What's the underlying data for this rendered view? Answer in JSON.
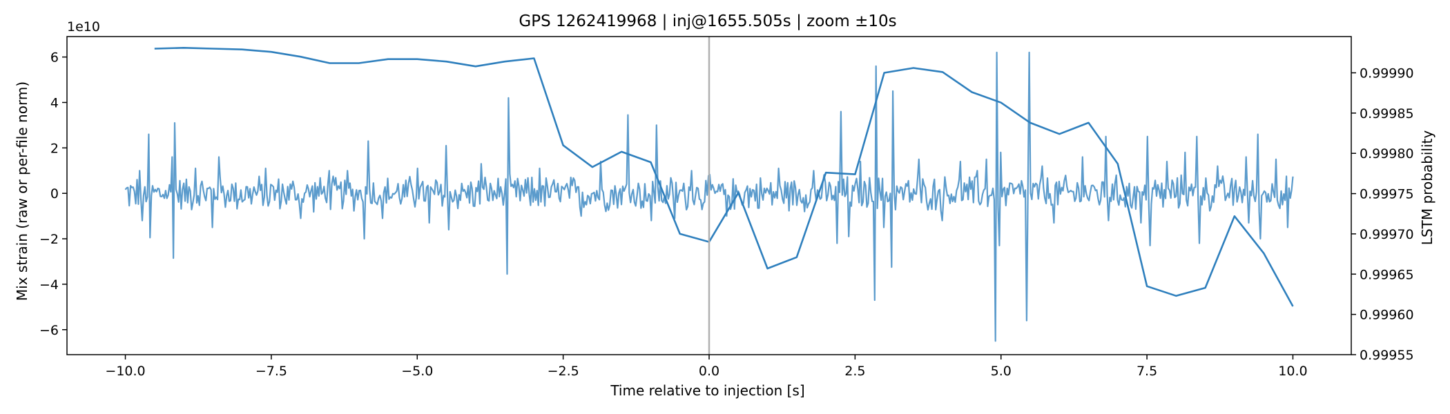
{
  "chart_data": {
    "type": "line",
    "title": "GPS 1262419968 | inj@1655.505s | zoom ±10s",
    "xlabel": "Time relative to injection [s]",
    "ylabel_left": "Mix strain (raw or per-file norm)",
    "ylabel_right": "LSTM probability",
    "left_scale_label": "1e10",
    "xlim": [
      -11,
      11
    ],
    "ylim_left": [
      -7.1,
      6.9
    ],
    "ylim_right": [
      0.99955,
      0.999945
    ],
    "x_ticks": [
      -10,
      -7.5,
      -5,
      -2.5,
      0,
      2.5,
      5,
      7.5,
      10
    ],
    "x_tick_labels": [
      "−10.0",
      "−7.5",
      "−5.0",
      "−2.5",
      "0.0",
      "2.5",
      "5.0",
      "7.5",
      "10.0"
    ],
    "y_left_ticks": [
      -6,
      -4,
      -2,
      0,
      2,
      4,
      6
    ],
    "y_left_tick_labels": [
      "−6",
      "−4",
      "−2",
      "0",
      "2",
      "4",
      "6"
    ],
    "y_right_ticks": [
      0.99955,
      0.9996,
      0.99965,
      0.9997,
      0.99975,
      0.9998,
      0.99985,
      0.9999
    ],
    "y_right_tick_labels": [
      "0.99955",
      "0.99960",
      "0.99965",
      "0.99970",
      "0.99975",
      "0.99980",
      "0.99985",
      "0.99990"
    ],
    "injection_marker_x": 0,
    "colors": {
      "strain": "#5b9bcc",
      "prob": "#2e7fbd",
      "vline": "#b0b0b0"
    },
    "strain_series": {
      "name": "Mix strain",
      "x_start": -10,
      "x_end": 10,
      "n": 900,
      "typical_amplitude": 0.9,
      "spikes": [
        {
          "x": -9.75,
          "y": 1.0
        },
        {
          "x": -9.7,
          "y": -1.2
        },
        {
          "x": -9.6,
          "y": 2.6
        },
        {
          "x": -9.58,
          "y": -1.95
        },
        {
          "x": -9.2,
          "y": 1.6
        },
        {
          "x": -9.18,
          "y": -2.85
        },
        {
          "x": -9.15,
          "y": 3.1
        },
        {
          "x": -8.8,
          "y": 1.1
        },
        {
          "x": -8.5,
          "y": -1.5
        },
        {
          "x": -8.4,
          "y": 1.6
        },
        {
          "x": -7.6,
          "y": 1.1
        },
        {
          "x": -7.0,
          "y": -1.1
        },
        {
          "x": -6.5,
          "y": 1.0
        },
        {
          "x": -6.2,
          "y": 1.0
        },
        {
          "x": -5.9,
          "y": -2.0
        },
        {
          "x": -5.85,
          "y": 2.3
        },
        {
          "x": -5.6,
          "y": -1.1
        },
        {
          "x": -5.0,
          "y": 1.1
        },
        {
          "x": -4.8,
          "y": -1.3
        },
        {
          "x": -4.5,
          "y": 2.1
        },
        {
          "x": -4.45,
          "y": -1.6
        },
        {
          "x": -3.9,
          "y": 1.3
        },
        {
          "x": -3.45,
          "y": -3.55
        },
        {
          "x": -3.43,
          "y": 4.2
        },
        {
          "x": -2.9,
          "y": 1.1
        },
        {
          "x": -2.2,
          "y": -1.0
        },
        {
          "x": -1.85,
          "y": 1.4
        },
        {
          "x": -1.4,
          "y": -3.2
        },
        {
          "x": -1.38,
          "y": 3.45
        },
        {
          "x": -1.0,
          "y": -1.2
        },
        {
          "x": -0.9,
          "y": 3.0
        },
        {
          "x": -0.6,
          "y": -1.1
        },
        {
          "x": -0.3,
          "y": 1.0
        },
        {
          "x": 0.3,
          "y": -1.0
        },
        {
          "x": 1.2,
          "y": 1.1
        },
        {
          "x": 1.8,
          "y": 1.0
        },
        {
          "x": 2.2,
          "y": -2.2
        },
        {
          "x": 2.25,
          "y": 3.6
        },
        {
          "x": 2.4,
          "y": -1.9
        },
        {
          "x": 2.6,
          "y": 1.4
        },
        {
          "x": 2.83,
          "y": -4.7
        },
        {
          "x": 2.85,
          "y": 5.6
        },
        {
          "x": 3.0,
          "y": -1.5
        },
        {
          "x": 3.13,
          "y": -3.25
        },
        {
          "x": 3.15,
          "y": 4.5
        },
        {
          "x": 3.6,
          "y": 1.5
        },
        {
          "x": 4.0,
          "y": -1.2
        },
        {
          "x": 4.3,
          "y": 1.4
        },
        {
          "x": 4.6,
          "y": 1.0
        },
        {
          "x": 4.75,
          "y": 1.5
        },
        {
          "x": 4.9,
          "y": -6.5
        },
        {
          "x": 4.93,
          "y": 6.2
        },
        {
          "x": 4.98,
          "y": -2.3
        },
        {
          "x": 5.0,
          "y": 1.8
        },
        {
          "x": 5.45,
          "y": -5.6
        },
        {
          "x": 5.48,
          "y": 6.2
        },
        {
          "x": 5.7,
          "y": 1.2
        },
        {
          "x": 5.9,
          "y": -1.3
        },
        {
          "x": 6.4,
          "y": 1.6
        },
        {
          "x": 6.8,
          "y": 2.5
        },
        {
          "x": 6.85,
          "y": -1.2
        },
        {
          "x": 7.4,
          "y": -1.3
        },
        {
          "x": 7.5,
          "y": 2.5
        },
        {
          "x": 7.55,
          "y": -2.3
        },
        {
          "x": 7.85,
          "y": 1.4
        },
        {
          "x": 8.15,
          "y": 1.8
        },
        {
          "x": 8.35,
          "y": 2.5
        },
        {
          "x": 8.4,
          "y": -2.2
        },
        {
          "x": 8.7,
          "y": 1.2
        },
        {
          "x": 9.2,
          "y": 1.6
        },
        {
          "x": 9.25,
          "y": -1.3
        },
        {
          "x": 9.4,
          "y": 2.6
        },
        {
          "x": 9.45,
          "y": -2.0
        },
        {
          "x": 9.7,
          "y": 1.5
        },
        {
          "x": 9.9,
          "y": 1.8
        },
        {
          "x": 9.92,
          "y": -1.5
        }
      ]
    },
    "prob_series": {
      "name": "LSTM probability",
      "x": [
        -9.5,
        -9.0,
        -8.5,
        -8.0,
        -7.5,
        -7.0,
        -6.5,
        -6.0,
        -5.5,
        -5.0,
        -4.5,
        -4.0,
        -3.5,
        -3.0,
        -2.5,
        -2.0,
        -1.5,
        -1.0,
        -0.5,
        0.0,
        0.5,
        1.0,
        1.5,
        2.0,
        2.5,
        3.0,
        3.5,
        4.0,
        4.5,
        5.0,
        5.5,
        6.0,
        6.5,
        7.0,
        7.5,
        8.0,
        8.5,
        9.0,
        9.5,
        10.0
      ],
      "y": [
        0.99993,
        0.999931,
        0.99993,
        0.999929,
        0.999926,
        0.99992,
        0.999912,
        0.999912,
        0.999917,
        0.999917,
        0.999914,
        0.999908,
        0.999914,
        0.999918,
        0.99981,
        0.999783,
        0.999802,
        0.999789,
        0.9997,
        0.99969,
        0.999751,
        0.999657,
        0.999671,
        0.999776,
        0.999774,
        0.9999,
        0.999906,
        0.999901,
        0.999876,
        0.999863,
        0.999838,
        0.999824,
        0.999838,
        0.999787,
        0.999635,
        0.999623,
        0.999633,
        0.999722,
        0.999676,
        0.99961
      ]
    }
  }
}
